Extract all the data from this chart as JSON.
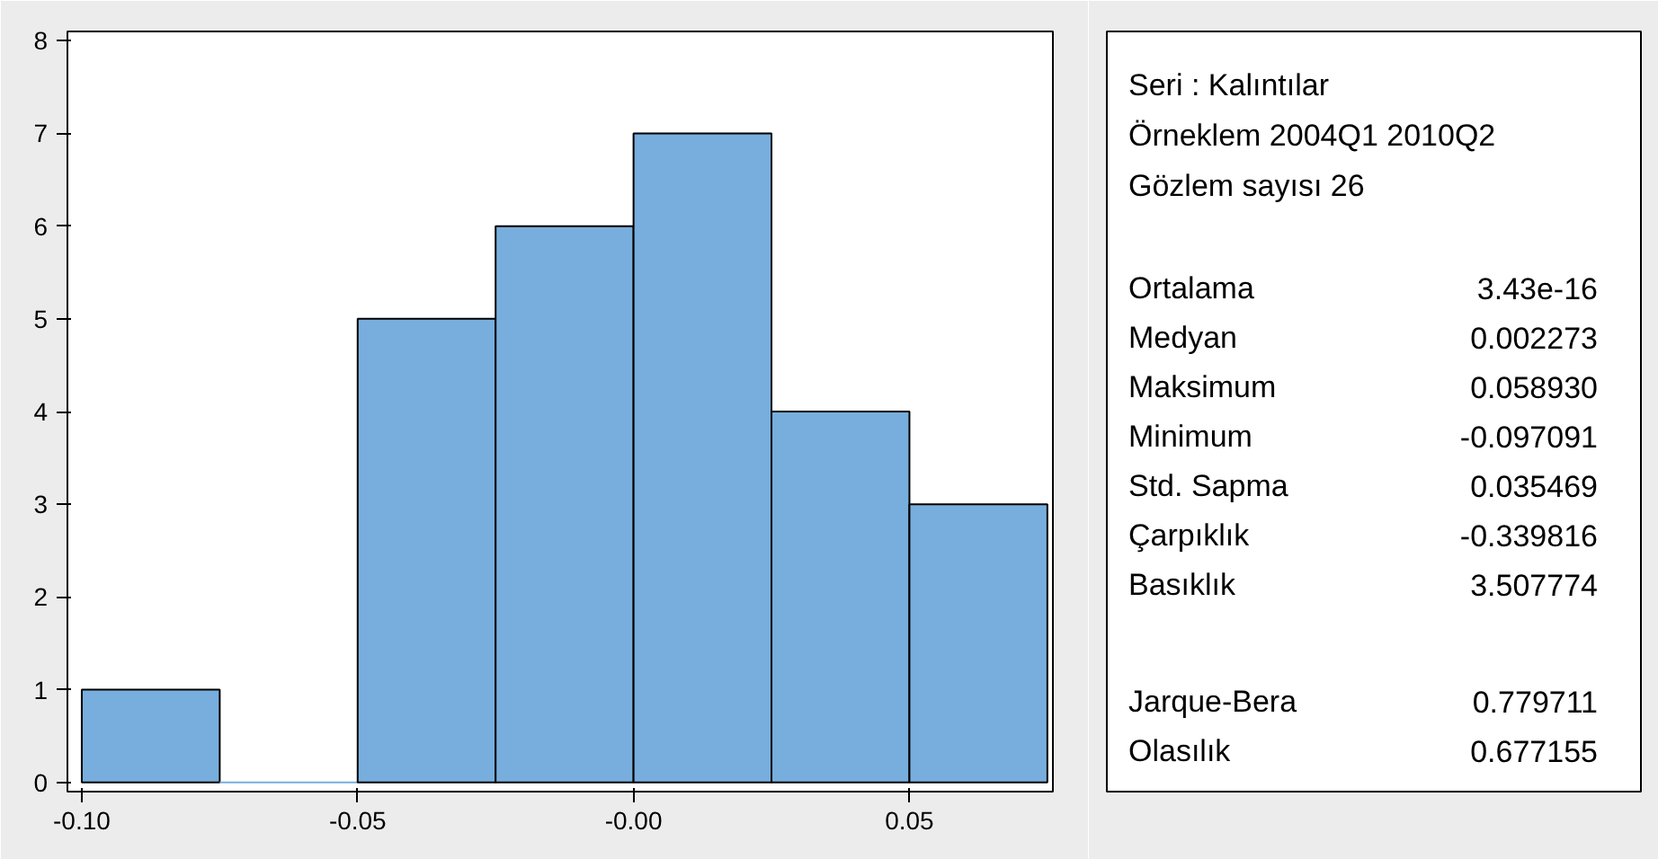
{
  "chart_data": [
    {
      "type": "histogram",
      "bins": [
        -0.1,
        -0.075,
        -0.05,
        -0.025,
        0,
        0.025,
        0.05,
        0.075
      ],
      "values": [
        1,
        0,
        5,
        6,
        7,
        4,
        3
      ],
      "color": "#78aedd",
      "xlim": [
        -0.1026,
        0.076
      ],
      "ylim": [
        -0.1,
        8.1
      ],
      "xticks": [
        {
          "value": -0.1,
          "label": "-0.10"
        },
        {
          "value": -0.05,
          "label": "-0.05"
        },
        {
          "value": 0,
          "label": "-0.00"
        },
        {
          "value": 0.05,
          "label": "0.05"
        }
      ],
      "yticks": [
        0,
        1,
        2,
        3,
        4,
        5,
        6,
        7,
        8
      ],
      "grid": false
    },
    {
      "type": "other",
      "annotations": [
        "Seri  : Kalıntılar",
        "Örneklem 2004Q1 2010Q2",
        "Gözlem sayısı 26",
        "Ortalama",
        "3.43e-16",
        "Medyan",
        "0.002273",
        "Maksimum",
        "0.058930",
        "Minimum",
        "-0.097091",
        "Std. Sapma",
        "0.035469",
        "Çarpıklık",
        "-0.339816",
        "Basıklık",
        "3.507774",
        "Jarque-Bera",
        "0.779711",
        "Olasılık",
        "0.677155"
      ]
    }
  ]
}
